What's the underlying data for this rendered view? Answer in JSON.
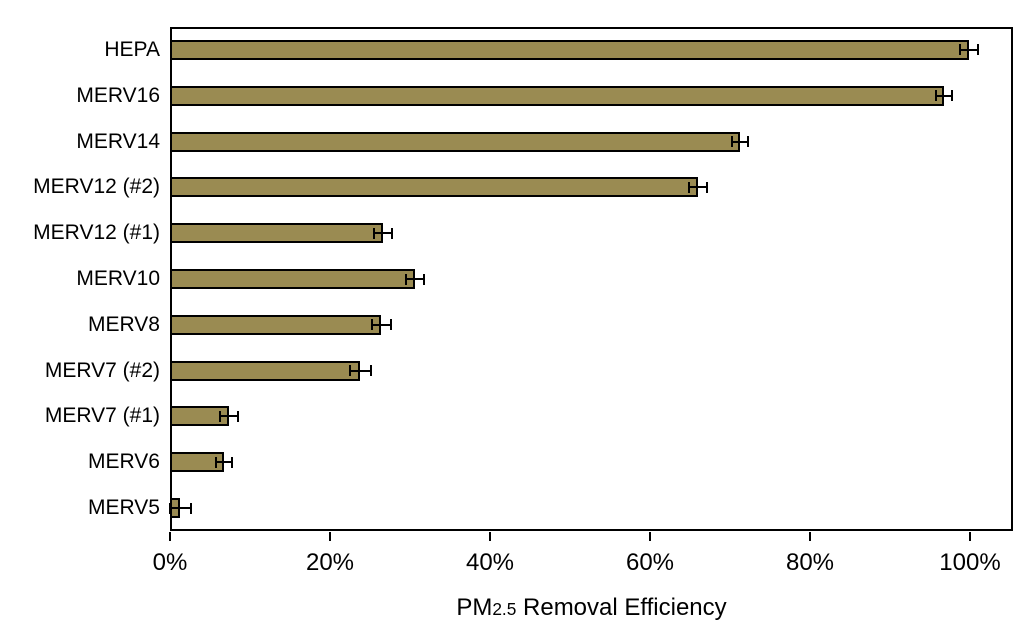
{
  "figure": {
    "background": "#ffffff"
  },
  "chart_data": {
    "type": "bar",
    "orientation": "horizontal",
    "title": "",
    "xlabel_prefix": "PM",
    "xlabel_subscript": "2.5",
    "xlabel_suffix": " Removal Efficiency",
    "categories": [
      "HEPA",
      "MERV16",
      "MERV14",
      "MERV12 (#2)",
      "MERV12 (#1)",
      "MERV10",
      "MERV8",
      "MERV7 (#2)",
      "MERV7 (#1)",
      "MERV6",
      "MERV5"
    ],
    "values": [
      99.9,
      96.7,
      71.3,
      66.0,
      26.6,
      30.6,
      26.4,
      23.8,
      7.4,
      6.8,
      1.3
    ],
    "errors": [
      1.1,
      1.0,
      1.0,
      1.1,
      1.1,
      1.1,
      1.2,
      1.3,
      1.1,
      1.0,
      1.3
    ],
    "x_tick_labels": [
      "0%",
      "20%",
      "40%",
      "60%",
      "80%",
      "100%"
    ],
    "x_tick_values": [
      0,
      20,
      40,
      60,
      80,
      100
    ],
    "xlim": [
      0,
      105
    ],
    "grid": false,
    "legend": false,
    "bar_color": "#9a8b52",
    "bar_border_color": "#000000",
    "error_bar_color": "#000000",
    "axis_color": "#000000",
    "text_color": "#000000"
  }
}
